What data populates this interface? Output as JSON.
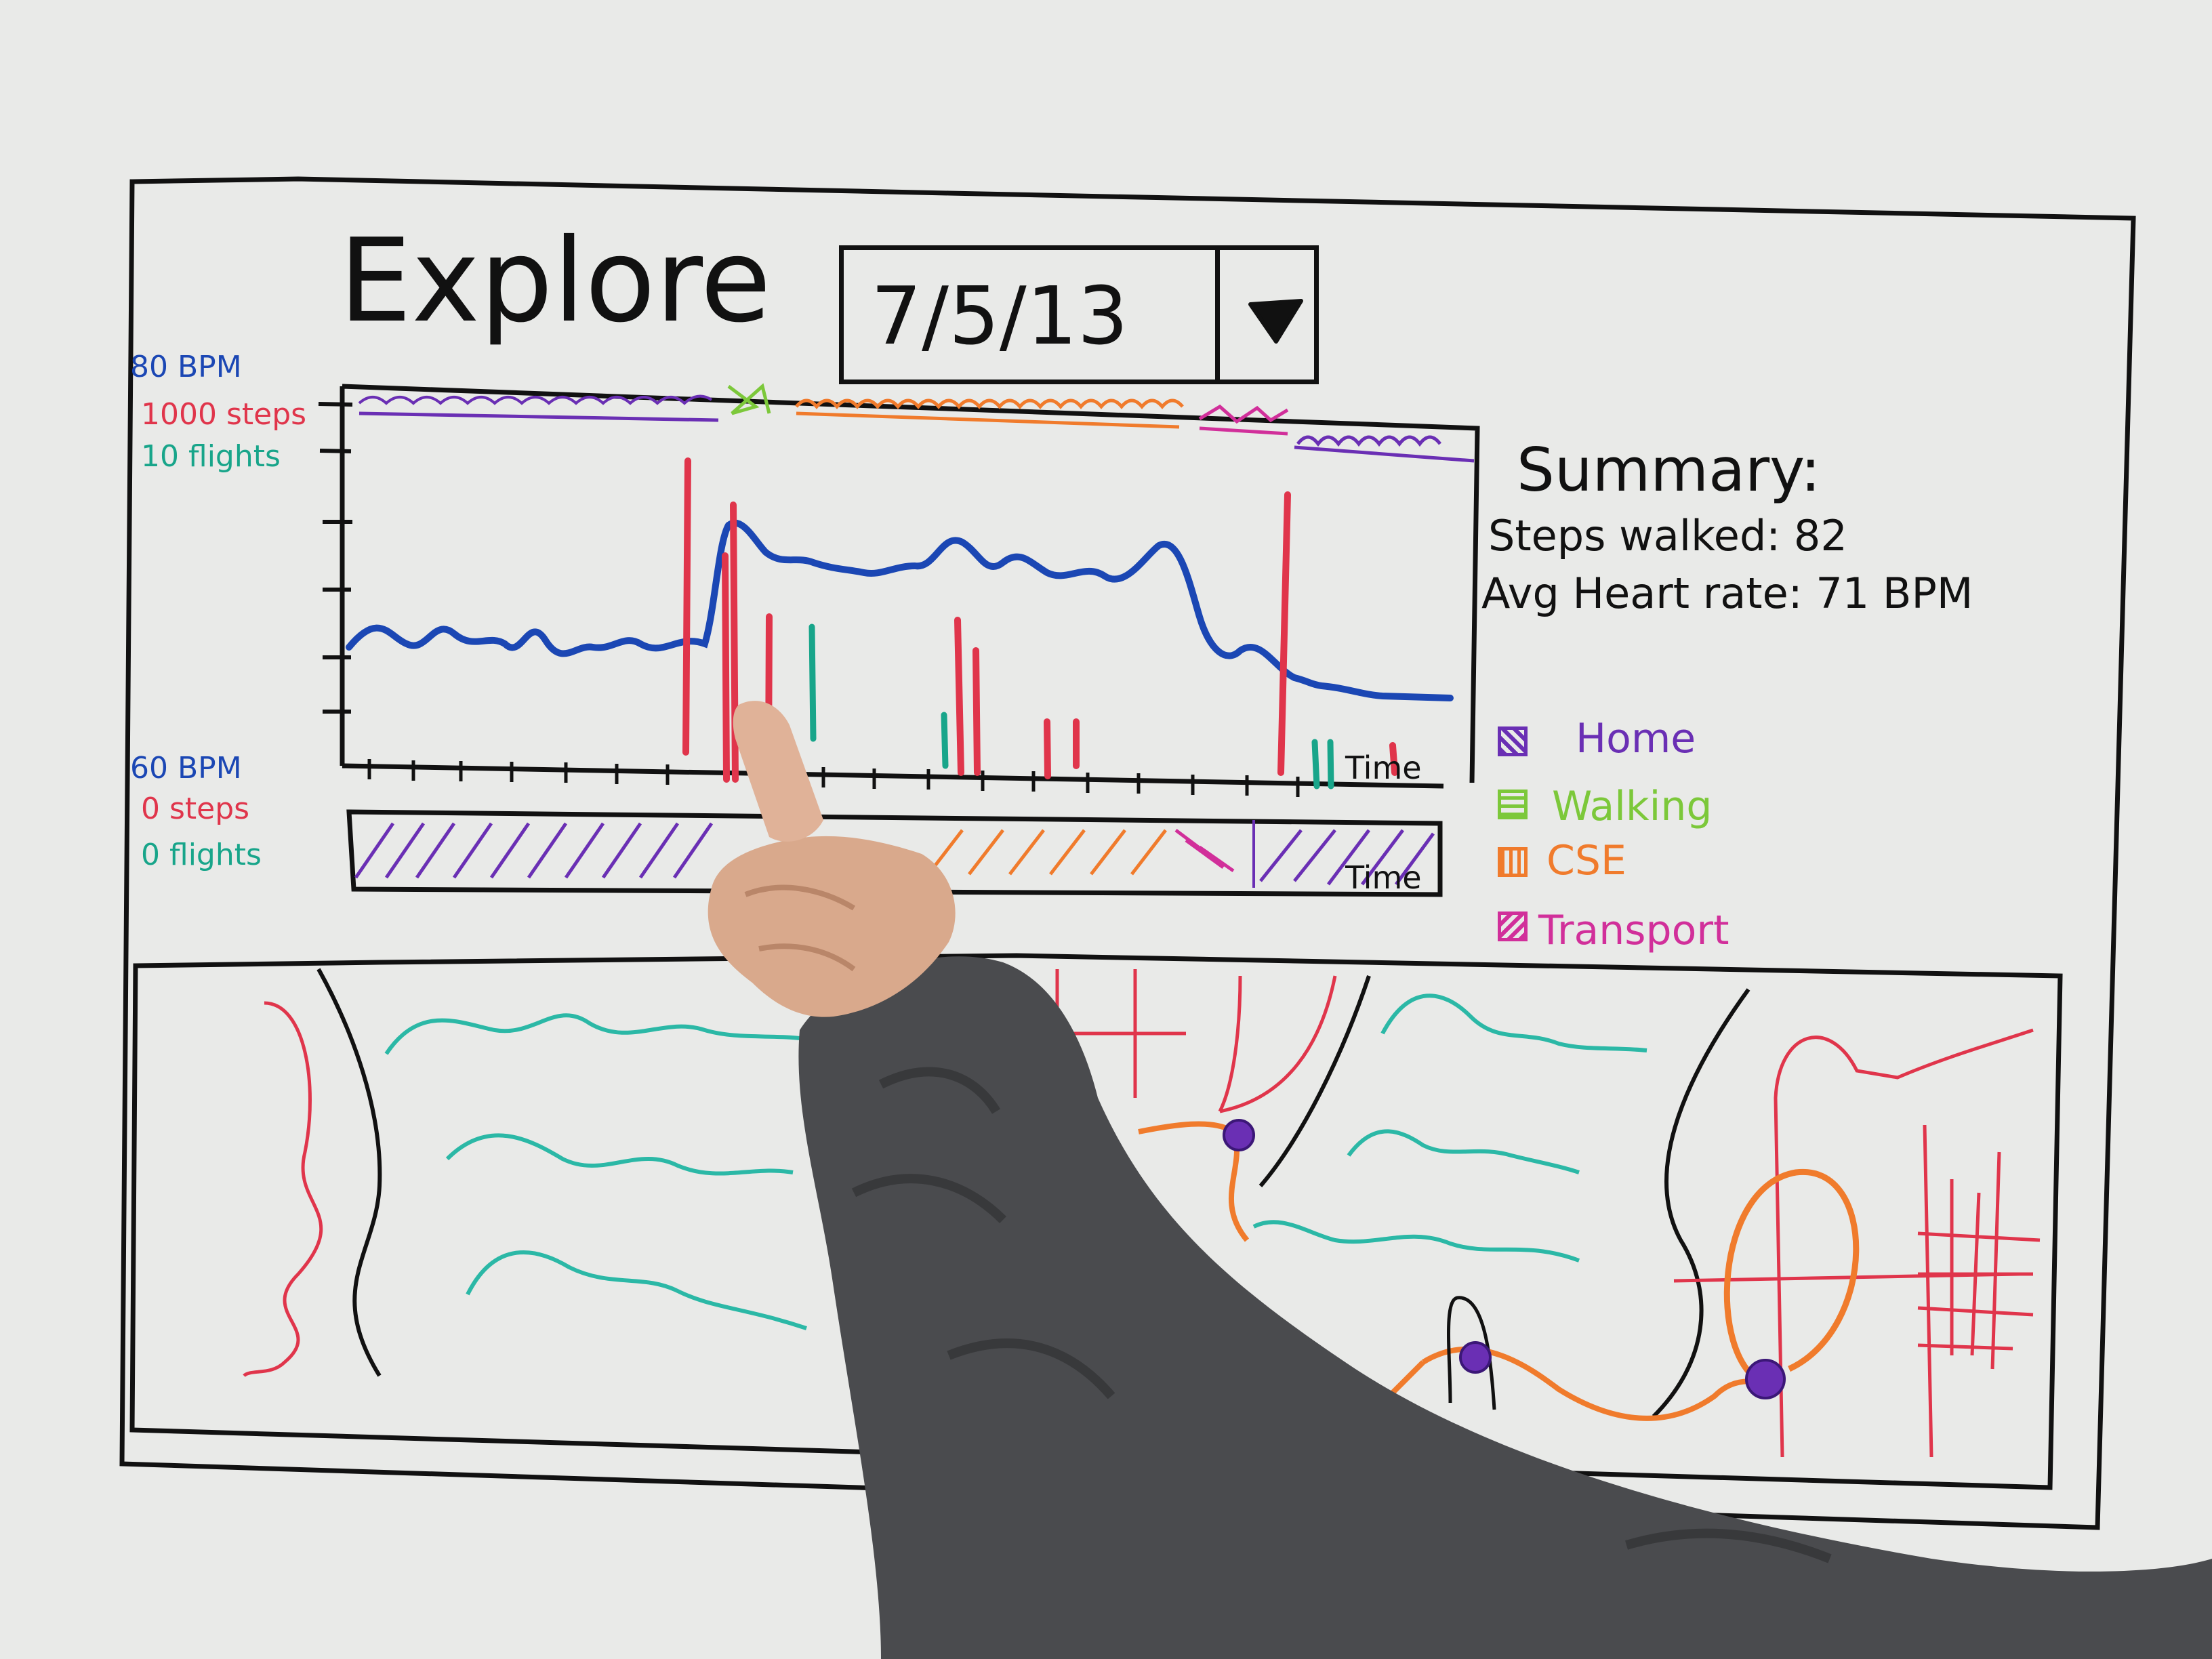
{
  "header": {
    "title": "Explore",
    "date_value": "7/5/13",
    "dropdown_icon": "triangle-down-icon"
  },
  "axis_labels": {
    "max_bpm": "80 BPM",
    "max_steps": "1000 steps",
    "max_flights": "10 flights",
    "min_bpm": "60 BPM",
    "min_steps": "0 steps",
    "min_flights": "0 flights",
    "time_top": "Time",
    "time_bottom": "Time"
  },
  "summary": {
    "title": "Summary:",
    "steps_walked": "Steps walked: 82",
    "avg_heart_rate": "Avg Heart rate: 71 BPM"
  },
  "legend": [
    {
      "label": "Home",
      "color": "#6a2fb4"
    },
    {
      "label": "Walking",
      "color": "#7cc83a"
    },
    {
      "label": "CSE",
      "color": "#f07b2c"
    },
    {
      "label": "Transport",
      "color": "#d12f9a"
    }
  ],
  "colors": {
    "heart_rate": "#1b47b4",
    "steps": "#e0354b",
    "flights": "#18a58a",
    "marker": "#111111",
    "route": "#f07b2c",
    "stop": "#6a2fb4",
    "water": "#2bb8a6",
    "roads": "#e0354b"
  }
}
